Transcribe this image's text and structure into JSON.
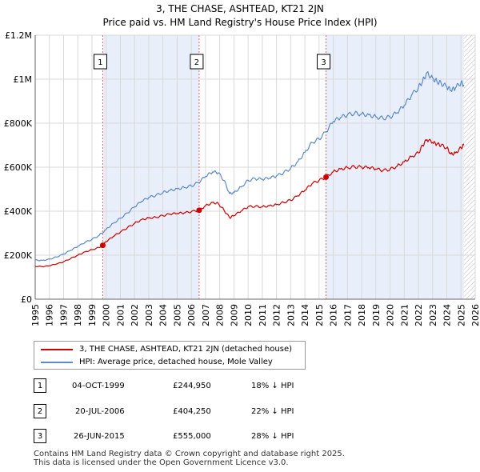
{
  "chart_data": {
    "type": "line",
    "title": "3, THE CHASE, ASHTEAD, KT21 2JN",
    "subtitle": "Price paid vs. HM Land Registry's House Price Index (HPI)",
    "xlim": [
      1995,
      2026
    ],
    "ylim": [
      0,
      1200000
    ],
    "x_ticks": [
      1995,
      1996,
      1997,
      1998,
      1999,
      2000,
      2001,
      2002,
      2003,
      2004,
      2005,
      2006,
      2007,
      2008,
      2009,
      2010,
      2011,
      2012,
      2013,
      2014,
      2015,
      2016,
      2017,
      2018,
      2019,
      2020,
      2021,
      2022,
      2023,
      2024,
      2025,
      2026
    ],
    "y_ticks": [
      {
        "value": 0,
        "label": "£0"
      },
      {
        "value": 200000,
        "label": "£200K"
      },
      {
        "value": 400000,
        "label": "£400K"
      },
      {
        "value": 600000,
        "label": "£600K"
      },
      {
        "value": 800000,
        "label": "£800K"
      },
      {
        "value": 1000000,
        "label": "£1M"
      },
      {
        "value": 1200000,
        "label": "£1.2M"
      }
    ],
    "shaded_ranges": [
      [
        1999.76,
        2006.55
      ],
      [
        2015.49,
        2025.2
      ]
    ],
    "hatched_from": 2025.2,
    "series": [
      {
        "name": "3, THE CHASE, ASHTEAD, KT21 2JN (detached house)",
        "color": "#cc0000",
        "x": [
          1995,
          1995.5,
          1996,
          1996.5,
          1997,
          1997.5,
          1998,
          1998.5,
          1999,
          1999.5,
          1999.76,
          2000,
          2000.5,
          2001,
          2001.5,
          2002,
          2002.5,
          2003,
          2003.5,
          2004,
          2004.5,
          2005,
          2005.5,
          2006,
          2006.55,
          2007,
          2007.5,
          2007.9,
          2008.3,
          2008.7,
          2009,
          2009.5,
          2010,
          2010.5,
          2011,
          2011.5,
          2012,
          2012.5,
          2013,
          2013.5,
          2014,
          2014.5,
          2015,
          2015.49,
          2016,
          2016.5,
          2017,
          2017.5,
          2018,
          2018.5,
          2019,
          2019.5,
          2020,
          2020.5,
          2021,
          2021.5,
          2022,
          2022.3,
          2022.6,
          2023,
          2023.3,
          2023.6,
          2024,
          2024.3,
          2024.6,
          2025,
          2025.2
        ],
        "values": [
          150000,
          148000,
          152000,
          160000,
          170000,
          185000,
          200000,
          215000,
          225000,
          235000,
          244950,
          262000,
          285000,
          305000,
          325000,
          345000,
          362000,
          370000,
          372000,
          380000,
          387000,
          390000,
          392000,
          398000,
          404250,
          425000,
          440000,
          435000,
          405000,
          370000,
          380000,
          400000,
          420000,
          422000,
          420000,
          425000,
          430000,
          440000,
          450000,
          470000,
          495000,
          525000,
          540000,
          555000,
          580000,
          592000,
          598000,
          602000,
          600000,
          598000,
          592000,
          585000,
          590000,
          605000,
          625000,
          648000,
          665000,
          700000,
          725000,
          712000,
          705000,
          700000,
          688000,
          660000,
          665000,
          688000,
          700000
        ]
      },
      {
        "name": "HPI: Average price, detached house, Mole Valley",
        "color": "#5b8ac6",
        "x": [
          1995,
          1995.5,
          1996,
          1996.5,
          1997,
          1997.5,
          1998,
          1998.5,
          1999,
          1999.5,
          2000,
          2000.5,
          2001,
          2001.5,
          2002,
          2002.5,
          2003,
          2003.5,
          2004,
          2004.5,
          2005,
          2005.5,
          2006,
          2006.5,
          2007,
          2007.5,
          2007.9,
          2008.3,
          2008.7,
          2009,
          2009.5,
          2010,
          2010.5,
          2011,
          2011.5,
          2012,
          2012.5,
          2013,
          2013.5,
          2014,
          2014.5,
          2015,
          2015.5,
          2016,
          2016.5,
          2017,
          2017.5,
          2018,
          2018.5,
          2019,
          2019.5,
          2020,
          2020.5,
          2021,
          2021.5,
          2022,
          2022.3,
          2022.6,
          2023,
          2023.3,
          2023.6,
          2024,
          2024.3,
          2024.6,
          2025,
          2025.2
        ],
        "values": [
          178000,
          176000,
          182000,
          192000,
          205000,
          222000,
          240000,
          258000,
          272000,
          290000,
          318000,
          345000,
          368000,
          392000,
          420000,
          445000,
          462000,
          472000,
          485000,
          495000,
          502000,
          508000,
          515000,
          530000,
          558000,
          578000,
          575000,
          540000,
          480000,
          485000,
          510000,
          540000,
          548000,
          545000,
          550000,
          560000,
          575000,
          595000,
          625000,
          668000,
          712000,
          728000,
          762000,
          808000,
          825000,
          838000,
          845000,
          842000,
          838000,
          830000,
          822000,
          828000,
          848000,
          880000,
          925000,
          962000,
          992000,
          1030000,
          1005000,
          990000,
          982000,
          965000,
          948000,
          960000,
          985000,
          975000
        ]
      }
    ],
    "markers": [
      {
        "label": "1",
        "x": 1999.76,
        "y": 244950
      },
      {
        "label": "2",
        "x": 2006.55,
        "y": 404250
      },
      {
        "label": "3",
        "x": 2015.49,
        "y": 555000
      }
    ]
  },
  "legend": {
    "red_label": "3, THE CHASE, ASHTEAD, KT21 2JN (detached house)",
    "blue_label": "HPI: Average price, detached house, Mole Valley",
    "red_color": "#cc0000",
    "blue_color": "#5b8ac6"
  },
  "transactions": [
    {
      "num": "1",
      "date": "04-OCT-1999",
      "price": "£244,950",
      "hpi": "18% ↓ HPI"
    },
    {
      "num": "2",
      "date": "20-JUL-2006",
      "price": "£404,250",
      "hpi": "22% ↓ HPI"
    },
    {
      "num": "3",
      "date": "26-JUN-2015",
      "price": "£555,000",
      "hpi": "28% ↓ HPI"
    }
  ],
  "footer": {
    "line1": "Contains HM Land Registry data © Crown copyright and database right 2025.",
    "line2": "This data is licensed under the Open Government Licence v3.0."
  }
}
